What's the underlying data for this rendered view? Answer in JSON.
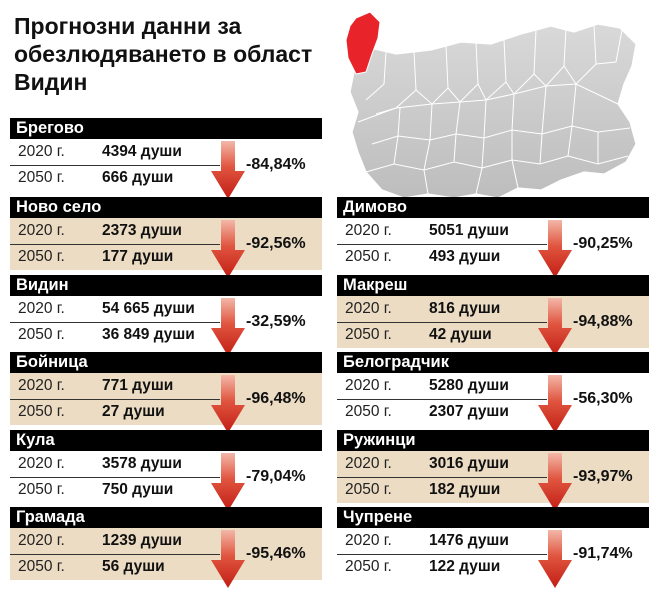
{
  "title": "Прогнозни данни за обезлюдяването в област Видин",
  "colors": {
    "header": "#000000",
    "shade": "#ecdcc3",
    "arrow": "#d42a1f",
    "highlight": "#e8232a"
  },
  "icons": {
    "arrow": "down-arrow-icon",
    "map": "bulgaria-map"
  },
  "cards": [
    {
      "name": "Брегово",
      "y2020": "2020 г.",
      "v2020": "4394 души",
      "y2050": "2050 г.",
      "v2050": "666 души",
      "change": "-84,84%"
    },
    {
      "name": "Ново село",
      "y2020": "2020 г.",
      "v2020": "2373 души",
      "y2050": "2050 г.",
      "v2050": "177 души",
      "change": "-92,56%"
    },
    {
      "name": "Видин",
      "y2020": "2020 г.",
      "v2020": "54 665 души",
      "y2050": "2050 г.",
      "v2050": "36 849 души",
      "change": "-32,59%"
    },
    {
      "name": "Бойница",
      "y2020": "2020 г.",
      "v2020": "771 души",
      "y2050": "2050 г.",
      "v2050": "27 души",
      "change": "-96,48%"
    },
    {
      "name": "Кула",
      "y2020": "2020 г.",
      "v2020": "3578 души",
      "y2050": "2050 г.",
      "v2050": "750 души",
      "change": "-79,04%"
    },
    {
      "name": "Грамада",
      "y2020": "2020 г.",
      "v2020": "1239 души",
      "y2050": "2050 г.",
      "v2050": "56 души",
      "change": "-95,46%"
    },
    {
      "name": "Димово",
      "y2020": "2020 г.",
      "v2020": "5051 души",
      "y2050": "2050 г.",
      "v2050": "493 души",
      "change": "-90,25%"
    },
    {
      "name": "Макреш",
      "y2020": "2020 г.",
      "v2020": "816 души",
      "y2050": "2050 г.",
      "v2050": "42 души",
      "change": "-94,88%"
    },
    {
      "name": "Белоградчик",
      "y2020": "2020 г.",
      "v2020": "5280 души",
      "y2050": "2050 г.",
      "v2050": "2307 души",
      "change": "-56,30%"
    },
    {
      "name": "Ружинци",
      "y2020": "2020 г.",
      "v2020": "3016 души",
      "y2050": "2050 г.",
      "v2050": "182 души",
      "change": "-93,97%"
    },
    {
      "name": "Чупрене",
      "y2020": "2020 г.",
      "v2020": "1476 души",
      "y2050": "2050 г.",
      "v2050": "122 души",
      "change": "-91,74%"
    }
  ]
}
